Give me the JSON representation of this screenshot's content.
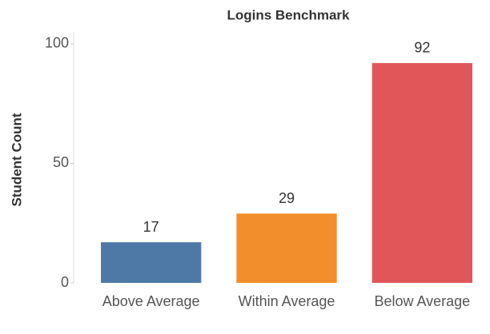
{
  "chart_data": {
    "type": "bar",
    "title": "Logins Benchmark",
    "y_label": "Student Count",
    "categories": [
      "Above Average",
      "Within Average",
      "Below Average"
    ],
    "values": [
      17,
      29,
      92
    ],
    "colors": [
      "#4e79a7",
      "#f28e2b",
      "#e15759"
    ],
    "ylim": [
      0,
      105
    ],
    "yticks": [
      0,
      50,
      100
    ],
    "grid": false
  }
}
